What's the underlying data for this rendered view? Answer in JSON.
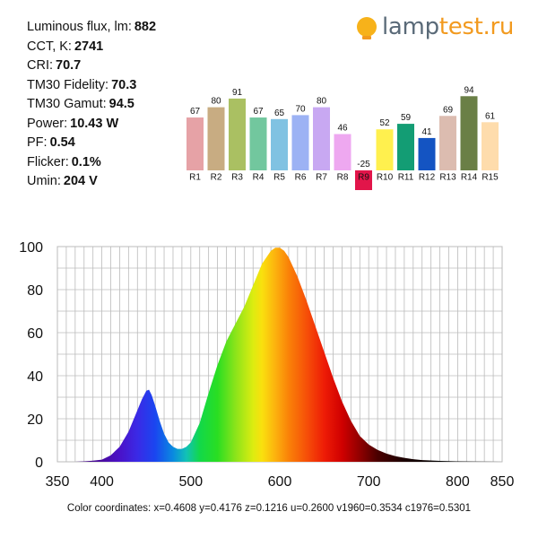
{
  "measurements": [
    {
      "label": "Luminous flux, lm:",
      "value": "882"
    },
    {
      "label": "CCT, K:",
      "value": "2741"
    },
    {
      "label": "CRI:",
      "value": "70.7"
    },
    {
      "label": "TM30 Fidelity:",
      "value": "70.3"
    },
    {
      "label": "TM30 Gamut:",
      "value": "94.5"
    },
    {
      "label": "Power:",
      "value": "10.43 W"
    },
    {
      "label": "PF:",
      "value": "0.54"
    },
    {
      "label": "Flicker:",
      "value": "0.1%"
    },
    {
      "label": "Umin:",
      "value": "204 V"
    }
  ],
  "logo": {
    "part1": "lamp",
    "part2": "test.ru",
    "icon": "bulb-logo-icon"
  },
  "colors": {
    "logo_gray": "#5a6a78",
    "logo_orange": "#f29a1f",
    "grid": "#bbbbbb"
  },
  "chart_data": [
    {
      "type": "bar",
      "categories": [
        "R1",
        "R2",
        "R3",
        "R4",
        "R5",
        "R6",
        "R7",
        "R8",
        "R9",
        "R10",
        "R11",
        "R12",
        "R13",
        "R14",
        "R15"
      ],
      "values": [
        67,
        80,
        91,
        67,
        65,
        70,
        80,
        46,
        -25,
        52,
        59,
        41,
        69,
        94,
        61
      ],
      "colors": [
        "#e6a2a6",
        "#c8ac82",
        "#aac062",
        "#72c79e",
        "#80c2e2",
        "#9cb2f4",
        "#c8a8f2",
        "#eea8f0",
        "#e2154a",
        "#fff04e",
        "#139d74",
        "#1454c2",
        "#dcbcb0",
        "#6a7f46",
        "#fedcac"
      ],
      "ylim": [
        -25,
        100
      ]
    },
    {
      "type": "area",
      "x": [
        350,
        360,
        370,
        380,
        390,
        400,
        410,
        420,
        430,
        440,
        445,
        450,
        453,
        456,
        460,
        465,
        470,
        475,
        480,
        485,
        490,
        495,
        500,
        510,
        520,
        530,
        540,
        550,
        560,
        570,
        580,
        590,
        595,
        600,
        605,
        610,
        620,
        630,
        640,
        650,
        660,
        670,
        680,
        690,
        700,
        710,
        720,
        730,
        740,
        750,
        760,
        780,
        800,
        820,
        850
      ],
      "y": [
        0,
        0,
        0,
        0.2,
        0.5,
        1,
        3,
        7,
        14,
        24,
        29,
        33,
        33.5,
        31,
        26,
        19,
        13,
        9,
        7,
        6,
        6,
        7,
        9,
        18,
        32,
        45,
        56,
        64,
        72,
        82,
        92,
        98,
        99.5,
        99.5,
        98,
        95,
        86,
        75,
        63,
        51,
        39,
        28,
        19,
        12,
        8,
        5.5,
        3.8,
        2.6,
        1.8,
        1.2,
        0.8,
        0.4,
        0.2,
        0.1,
        0
      ],
      "xlim": [
        350,
        850
      ],
      "ylim": [
        0,
        100
      ],
      "xticks": [
        350,
        400,
        500,
        600,
        700,
        800,
        850
      ],
      "yticks": [
        0,
        20,
        40,
        60,
        80,
        100
      ],
      "grid": true
    }
  ],
  "color_coordinates": "Color coordinates: x=0.4608 y=0.4176 z=0.1216 u=0.2600 v1960=0.3534 c1976=0.5301"
}
